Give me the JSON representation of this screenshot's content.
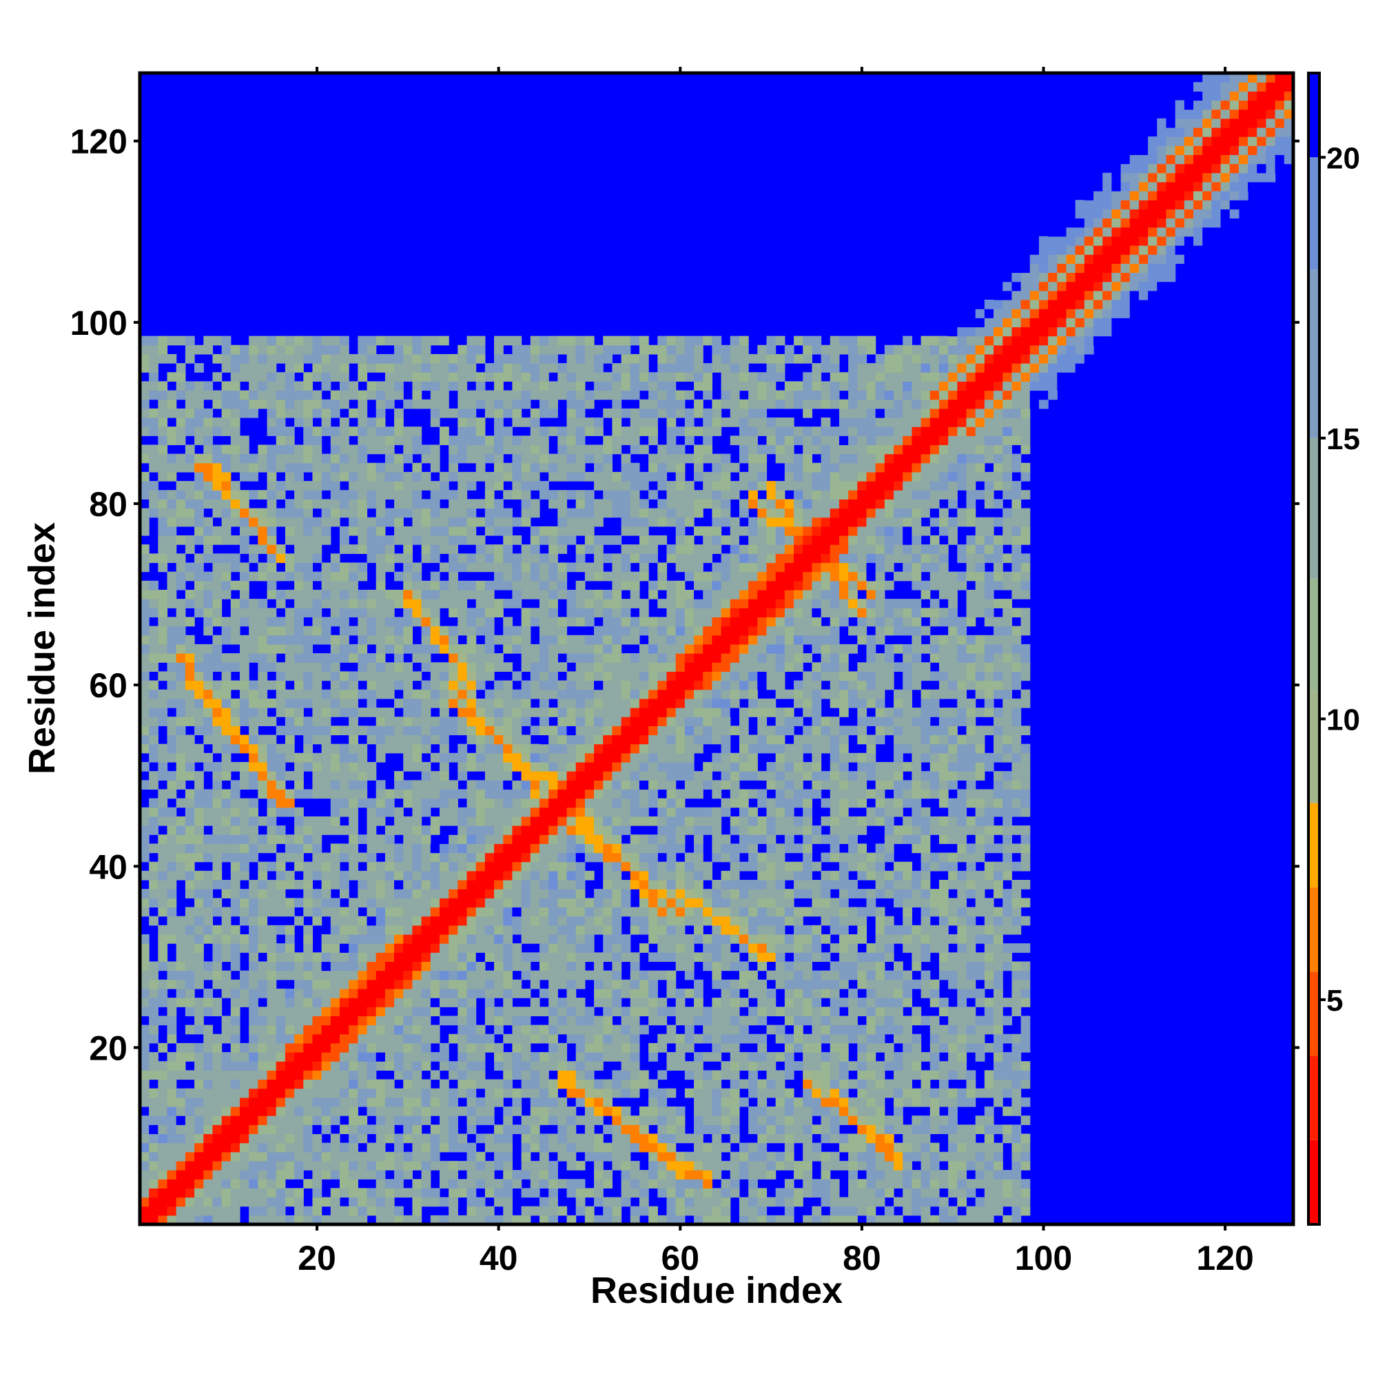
{
  "chart_data": {
    "type": "heatmap",
    "title": "",
    "xlabel": "Residue index",
    "ylabel": "Residue index",
    "n_residues": 127,
    "xlim": [
      0.5,
      127.5
    ],
    "ylim": [
      0.5,
      127.5
    ],
    "x_ticks": [
      "20",
      "40",
      "60",
      "80",
      "100",
      "120"
    ],
    "y_ticks": [
      "20",
      "40",
      "60",
      "80",
      "100",
      "120"
    ],
    "x_tick_values": [
      20,
      40,
      60,
      80,
      100,
      120
    ],
    "y_tick_values": [
      20,
      40,
      60,
      80,
      100,
      120
    ],
    "grid": false,
    "colorbar": {
      "placement": "right",
      "range": [
        1,
        21.5
      ],
      "ticks": [
        "5",
        "10",
        "15",
        "20"
      ],
      "tick_values": [
        5,
        10,
        15,
        20
      ],
      "levels": [
        {
          "max": 2.5,
          "color": "#ff0000"
        },
        {
          "max": 4.0,
          "color": "#ff2000"
        },
        {
          "max": 5.5,
          "color": "#ff5000"
        },
        {
          "max": 7.0,
          "color": "#ff8000"
        },
        {
          "max": 8.5,
          "color": "#ffaa00"
        },
        {
          "max": 10.5,
          "color": "#a3b58a"
        },
        {
          "max": 12.5,
          "color": "#99b592"
        },
        {
          "max": 15.0,
          "color": "#8fa9a5"
        },
        {
          "max": 18.0,
          "color": "#7f9cc1"
        },
        {
          "max": 20.0,
          "color": "#6d8fd5"
        },
        {
          "max": 21.5,
          "color": "#0000ff"
        }
      ],
      "background_color": "#0000ff"
    },
    "cap_value": 21.5,
    "diagonal_band": [
      {
        "from": 1,
        "to": 127,
        "width": 2.2
      }
    ],
    "contact_regions": [
      {
        "i_range": [
          17,
          32
        ],
        "j_range": [
          17,
          32
        ],
        "center_offset": 3,
        "min": 4.5
      },
      {
        "i_range": [
          60,
          78
        ],
        "j_range": [
          60,
          78
        ],
        "center_offset": 3,
        "min": 4.5
      },
      {
        "i_range": [
          88,
          127
        ],
        "j_range": [
          88,
          127
        ],
        "center_offset": 4,
        "min": 4.5
      }
    ],
    "off_diagonal_contacts": [
      {
        "i": [
          8,
          16
        ],
        "j": [
          84,
          74
        ],
        "value": 5.5
      },
      {
        "i": [
          5,
          16
        ],
        "j": [
          63,
          47
        ],
        "value": 5.5
      },
      {
        "i": [
          35,
          48
        ],
        "j": [
          58,
          47
        ],
        "value": 6.0
      },
      {
        "i": [
          46,
          60
        ],
        "j": [
          46,
          35
        ],
        "value": 6.0
      },
      {
        "i": [
          47,
          60
        ],
        "j": [
          17,
          6
        ],
        "value": 6.0
      },
      {
        "i": [
          78,
          84
        ],
        "j": [
          13,
          7
        ],
        "value": 6.0
      },
      {
        "i": [
          70,
          80
        ],
        "j": [
          81,
          68
        ],
        "value": 6.0
      },
      {
        "i": [
          60,
          70
        ],
        "j": [
          37,
          30
        ],
        "value": 6.5
      },
      {
        "i": [
          30,
          36
        ],
        "j": [
          69,
          62
        ],
        "value": 7.0
      }
    ],
    "cloud_region": {
      "i_max": 98,
      "j_max": 98,
      "base": 14
    }
  }
}
